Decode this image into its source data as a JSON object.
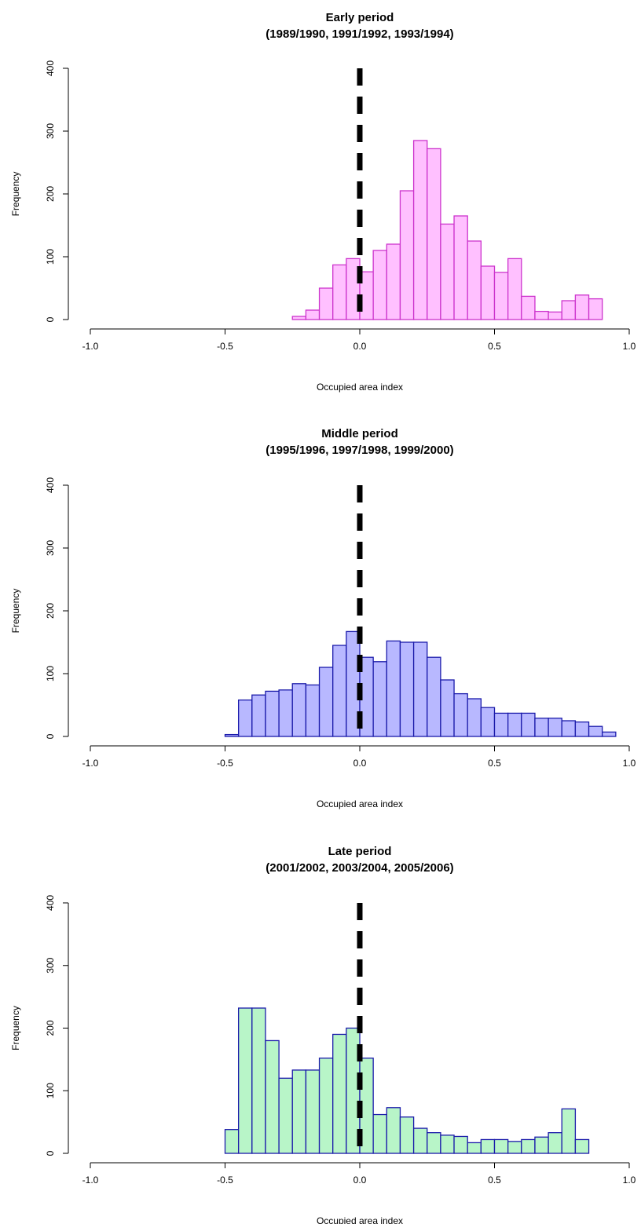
{
  "chart_data": [
    {
      "type": "bar",
      "title": "Early period",
      "subtitle": "(1989/1990, 1991/1992, 1993/1994)",
      "xlabel": "Occupied area index",
      "ylabel": "Frequency",
      "xlim": [
        -1.0,
        1.0
      ],
      "ylim": [
        0,
        400
      ],
      "xticks": [
        "-1.0",
        "-0.5",
        "0.0",
        "0.5",
        "1.0"
      ],
      "yticks": [
        "0",
        "100",
        "200",
        "300",
        "400"
      ],
      "bin_width": 0.05,
      "reference_line_x": 0.0,
      "fill": "#ffc0ff",
      "stroke": "#cc33cc",
      "bins": [
        {
          "x": -0.25,
          "y": 5
        },
        {
          "x": -0.2,
          "y": 15
        },
        {
          "x": -0.15,
          "y": 50
        },
        {
          "x": -0.1,
          "y": 87
        },
        {
          "x": -0.05,
          "y": 97
        },
        {
          "x": 0.0,
          "y": 76
        },
        {
          "x": 0.05,
          "y": 110
        },
        {
          "x": 0.1,
          "y": 120
        },
        {
          "x": 0.15,
          "y": 205
        },
        {
          "x": 0.2,
          "y": 285
        },
        {
          "x": 0.25,
          "y": 272
        },
        {
          "x": 0.3,
          "y": 152
        },
        {
          "x": 0.35,
          "y": 165
        },
        {
          "x": 0.4,
          "y": 125
        },
        {
          "x": 0.45,
          "y": 85
        },
        {
          "x": 0.5,
          "y": 75
        },
        {
          "x": 0.55,
          "y": 97
        },
        {
          "x": 0.6,
          "y": 37
        },
        {
          "x": 0.65,
          "y": 13
        },
        {
          "x": 0.7,
          "y": 12
        },
        {
          "x": 0.75,
          "y": 30
        },
        {
          "x": 0.8,
          "y": 39
        },
        {
          "x": 0.85,
          "y": 33
        },
        {
          "x": 0.9,
          "y": 0
        }
      ]
    },
    {
      "type": "bar",
      "title": "Middle period",
      "subtitle": "(1995/1996, 1997/1998, 1999/2000)",
      "xlabel": "Occupied area index",
      "ylabel": "Frequency",
      "xlim": [
        -1.0,
        1.0
      ],
      "ylim": [
        0,
        400
      ],
      "xticks": [
        "-1.0",
        "-0.5",
        "0.0",
        "0.5",
        "1.0"
      ],
      "yticks": [
        "0",
        "100",
        "200",
        "300",
        "400"
      ],
      "bin_width": 0.05,
      "reference_line_x": 0.0,
      "fill": "#b8b8ff",
      "stroke": "#1a1aaa",
      "bins": [
        {
          "x": -0.5,
          "y": 3
        },
        {
          "x": -0.45,
          "y": 58
        },
        {
          "x": -0.4,
          "y": 66
        },
        {
          "x": -0.35,
          "y": 72
        },
        {
          "x": -0.3,
          "y": 74
        },
        {
          "x": -0.25,
          "y": 84
        },
        {
          "x": -0.2,
          "y": 82
        },
        {
          "x": -0.15,
          "y": 110
        },
        {
          "x": -0.1,
          "y": 145
        },
        {
          "x": -0.05,
          "y": 167
        },
        {
          "x": 0.0,
          "y": 126
        },
        {
          "x": 0.05,
          "y": 119
        },
        {
          "x": 0.1,
          "y": 152
        },
        {
          "x": 0.15,
          "y": 150
        },
        {
          "x": 0.2,
          "y": 150
        },
        {
          "x": 0.25,
          "y": 126
        },
        {
          "x": 0.3,
          "y": 90
        },
        {
          "x": 0.35,
          "y": 68
        },
        {
          "x": 0.4,
          "y": 60
        },
        {
          "x": 0.45,
          "y": 46
        },
        {
          "x": 0.5,
          "y": 37
        },
        {
          "x": 0.55,
          "y": 37
        },
        {
          "x": 0.6,
          "y": 37
        },
        {
          "x": 0.65,
          "y": 29
        },
        {
          "x": 0.7,
          "y": 29
        },
        {
          "x": 0.75,
          "y": 25
        },
        {
          "x": 0.8,
          "y": 23
        },
        {
          "x": 0.85,
          "y": 16
        },
        {
          "x": 0.9,
          "y": 7
        }
      ]
    },
    {
      "type": "bar",
      "title": "Late period",
      "subtitle": "(2001/2002, 2003/2004, 2005/2006)",
      "xlabel": "Occupied area index",
      "ylabel": "Frequency",
      "xlim": [
        -1.0,
        1.0
      ],
      "ylim": [
        0,
        400
      ],
      "xticks": [
        "-1.0",
        "-0.5",
        "0.0",
        "0.5",
        "1.0"
      ],
      "yticks": [
        "0",
        "100",
        "200",
        "300",
        "400"
      ],
      "bin_width": 0.05,
      "reference_line_x": 0.0,
      "fill": "#b8f5c8",
      "stroke": "#1a1aaa",
      "bins": [
        {
          "x": -0.5,
          "y": 38
        },
        {
          "x": -0.45,
          "y": 232
        },
        {
          "x": -0.4,
          "y": 232
        },
        {
          "x": -0.35,
          "y": 180
        },
        {
          "x": -0.3,
          "y": 120
        },
        {
          "x": -0.25,
          "y": 133
        },
        {
          "x": -0.2,
          "y": 133
        },
        {
          "x": -0.15,
          "y": 152
        },
        {
          "x": -0.1,
          "y": 190
        },
        {
          "x": -0.05,
          "y": 200
        },
        {
          "x": 0.0,
          "y": 152
        },
        {
          "x": 0.05,
          "y": 62
        },
        {
          "x": 0.1,
          "y": 73
        },
        {
          "x": 0.15,
          "y": 58
        },
        {
          "x": 0.2,
          "y": 40
        },
        {
          "x": 0.25,
          "y": 33
        },
        {
          "x": 0.3,
          "y": 29
        },
        {
          "x": 0.35,
          "y": 27
        },
        {
          "x": 0.4,
          "y": 17
        },
        {
          "x": 0.45,
          "y": 22
        },
        {
          "x": 0.5,
          "y": 22
        },
        {
          "x": 0.55,
          "y": 19
        },
        {
          "x": 0.6,
          "y": 22
        },
        {
          "x": 0.65,
          "y": 26
        },
        {
          "x": 0.7,
          "y": 33
        },
        {
          "x": 0.75,
          "y": 71
        },
        {
          "x": 0.8,
          "y": 22
        }
      ]
    }
  ]
}
